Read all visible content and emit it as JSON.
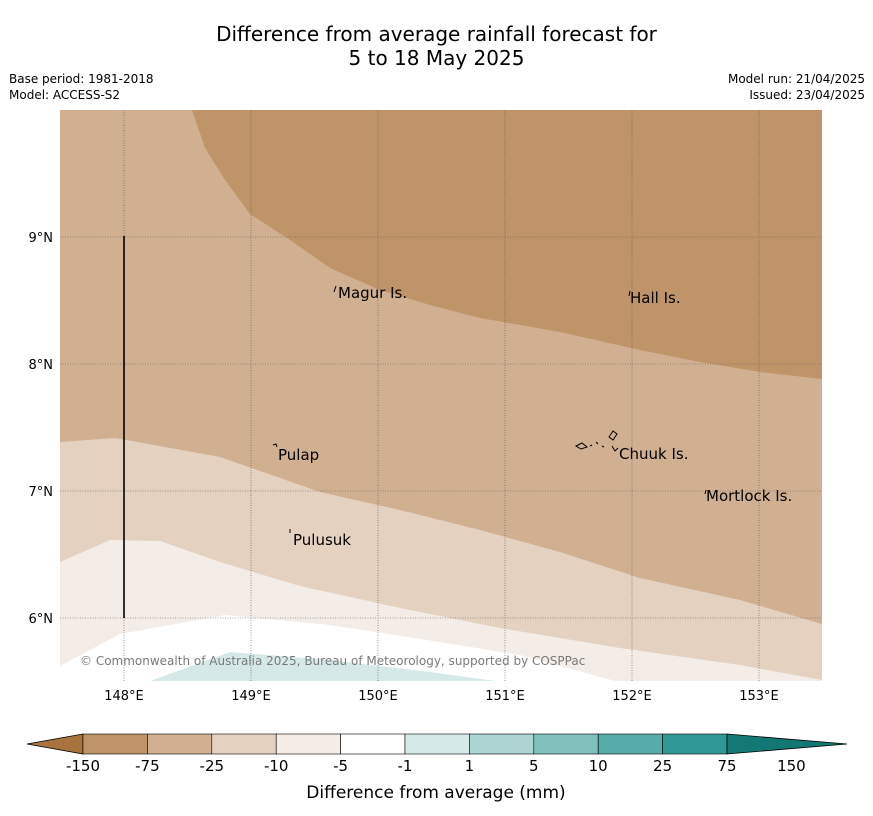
{
  "title": {
    "line1": "Difference from average rainfall forecast for",
    "line2": "5 to 18 May 2025"
  },
  "meta": {
    "base_period": "Base period: 1981-2018",
    "model": "Model: ACCESS-S2",
    "model_run": "Model run: 21/04/2025",
    "issued": "Issued: 23/04/2025"
  },
  "map": {
    "lat_labels": [
      "9°N",
      "8°N",
      "7°N",
      "6°N"
    ],
    "lon_labels": [
      "148°E",
      "149°E",
      "150°E",
      "151°E",
      "152°E",
      "153°E"
    ],
    "places": [
      "Magur Is.",
      "Hall Is.",
      "Pulap",
      "Chuuk Is.",
      "Mortlock Is.",
      "Pulusuk"
    ],
    "copyright": "© Commonwealth of Australia 2025, Bureau of Meteorology, supported by COSPPac"
  },
  "colorbar": {
    "title": "Difference from average (mm)",
    "ticks": [
      "-150",
      "-75",
      "-25",
      "-10",
      "-5",
      "-1",
      "1",
      "5",
      "10",
      "25",
      "75",
      "150"
    ],
    "colors": [
      "#a9733f",
      "#c09469",
      "#d1b092",
      "#e4d1c0",
      "#f4ece7",
      "#ffffff",
      "#d5e9e8",
      "#acd4d3",
      "#80c0bd",
      "#57aba8",
      "#309894",
      "#137873"
    ]
  }
}
